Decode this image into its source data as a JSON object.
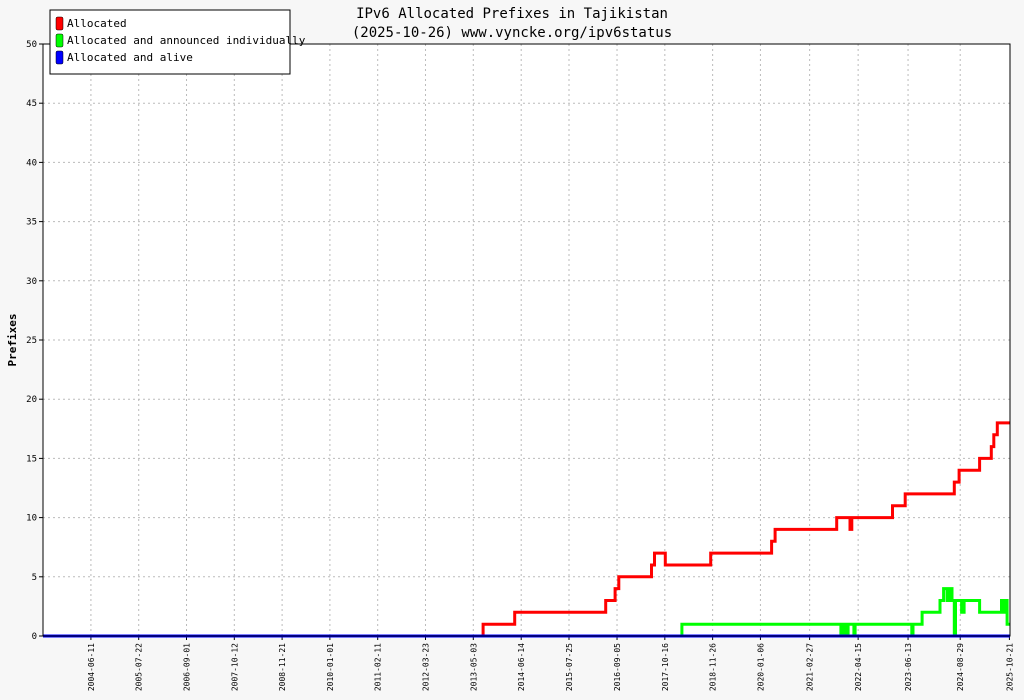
{
  "chart_data": {
    "type": "line",
    "title": "IPv6 Allocated Prefixes in Tajikistan",
    "subtitle": "(2025-10-26) www.vyncke.org/ipv6status",
    "ylabel": "Prefixes",
    "xlabel": "",
    "ylim": [
      0,
      50
    ],
    "yticks": [
      0,
      5,
      10,
      15,
      20,
      25,
      30,
      35,
      40,
      45,
      50
    ],
    "xlim": [
      "2003-05-01",
      "2025-10-26"
    ],
    "xticks": [
      "2004-06-11",
      "2005-07-22",
      "2006-09-01",
      "2007-10-12",
      "2008-11-21",
      "2010-01-01",
      "2011-02-11",
      "2012-03-23",
      "2013-05-03",
      "2014-06-14",
      "2015-07-25",
      "2016-09-05",
      "2017-10-16",
      "2018-11-26",
      "2020-01-06",
      "2021-02-27",
      "2022-04-15",
      "2023-06-13",
      "2024-08-29",
      "2025-10-21"
    ],
    "grid": true,
    "legend_position": "top-left",
    "series": [
      {
        "name": "Allocated",
        "color": "#ff0000",
        "x": [
          "2003-05-01",
          "2013-07-25",
          "2013-07-25",
          "2014-04-20",
          "2014-04-20",
          "2016-06-01",
          "2016-06-01",
          "2016-08-20",
          "2016-08-20",
          "2016-09-20",
          "2016-09-20",
          "2017-06-25",
          "2017-06-25",
          "2017-07-20",
          "2017-07-20",
          "2017-10-20",
          "2017-10-20",
          "2018-11-10",
          "2018-11-10",
          "2020-04-10",
          "2020-04-10",
          "2020-05-10",
          "2020-05-10",
          "2021-10-15",
          "2021-10-15",
          "2022-02-05",
          "2022-02-05",
          "2022-02-20",
          "2022-02-20",
          "2023-02-01",
          "2023-02-01",
          "2023-05-20",
          "2023-05-20",
          "2024-07-10",
          "2024-07-10",
          "2024-08-20",
          "2024-08-20",
          "2025-02-10",
          "2025-02-10",
          "2025-05-20",
          "2025-05-20",
          "2025-06-10",
          "2025-06-10",
          "2025-07-10",
          "2025-07-10",
          "2025-10-26"
        ],
        "y": [
          0,
          0,
          1,
          1,
          2,
          2,
          3,
          3,
          4,
          4,
          5,
          5,
          6,
          6,
          7,
          7,
          6,
          6,
          7,
          7,
          8,
          8,
          9,
          9,
          10,
          10,
          9,
          9,
          10,
          10,
          11,
          11,
          12,
          12,
          13,
          13,
          14,
          14,
          15,
          15,
          16,
          16,
          17,
          17,
          18,
          18
        ]
      },
      {
        "name": "Allocated and announced individually",
        "color": "#00ff00",
        "x": [
          "2003-05-01",
          "2018-03-10",
          "2018-03-10",
          "2021-11-20",
          "2021-11-20",
          "2021-11-25",
          "2021-11-25",
          "2021-12-10",
          "2021-12-10",
          "2021-12-20",
          "2021-12-20",
          "2022-01-10",
          "2022-01-10",
          "2022-01-20",
          "2022-01-20",
          "2022-03-10",
          "2022-03-10",
          "2022-03-20",
          "2022-03-20",
          "2023-07-15",
          "2023-07-15",
          "2023-07-25",
          "2023-07-25",
          "2023-10-10",
          "2023-10-10",
          "2024-03-10",
          "2024-03-10",
          "2024-04-10",
          "2024-04-10",
          "2024-05-10",
          "2024-05-10",
          "2024-06-01",
          "2024-06-01",
          "2024-06-20",
          "2024-06-20",
          "2024-07-10",
          "2024-07-10",
          "2024-07-20",
          "2024-07-20",
          "2024-09-10",
          "2024-09-10",
          "2024-10-01",
          "2024-10-01",
          "2025-02-10",
          "2025-02-10",
          "2025-08-15",
          "2025-08-15",
          "2025-08-25",
          "2025-08-25",
          "2025-09-15",
          "2025-09-15",
          "2025-10-01",
          "2025-10-01",
          "2025-10-26"
        ],
        "y": [
          0,
          0,
          1,
          1,
          0,
          0,
          1,
          1,
          0,
          0,
          1,
          1,
          0,
          0,
          1,
          1,
          0,
          0,
          1,
          1,
          0,
          0,
          1,
          1,
          2,
          2,
          3,
          3,
          4,
          4,
          3,
          3,
          4,
          4,
          3,
          3,
          0,
          0,
          3,
          3,
          2,
          2,
          3,
          3,
          2,
          2,
          3,
          3,
          2,
          2,
          3,
          3,
          1,
          1
        ]
      },
      {
        "name": "Allocated and alive",
        "color": "#0000ff",
        "x": [
          "2003-05-01",
          "2025-10-26"
        ],
        "y": [
          0,
          0
        ]
      }
    ]
  }
}
